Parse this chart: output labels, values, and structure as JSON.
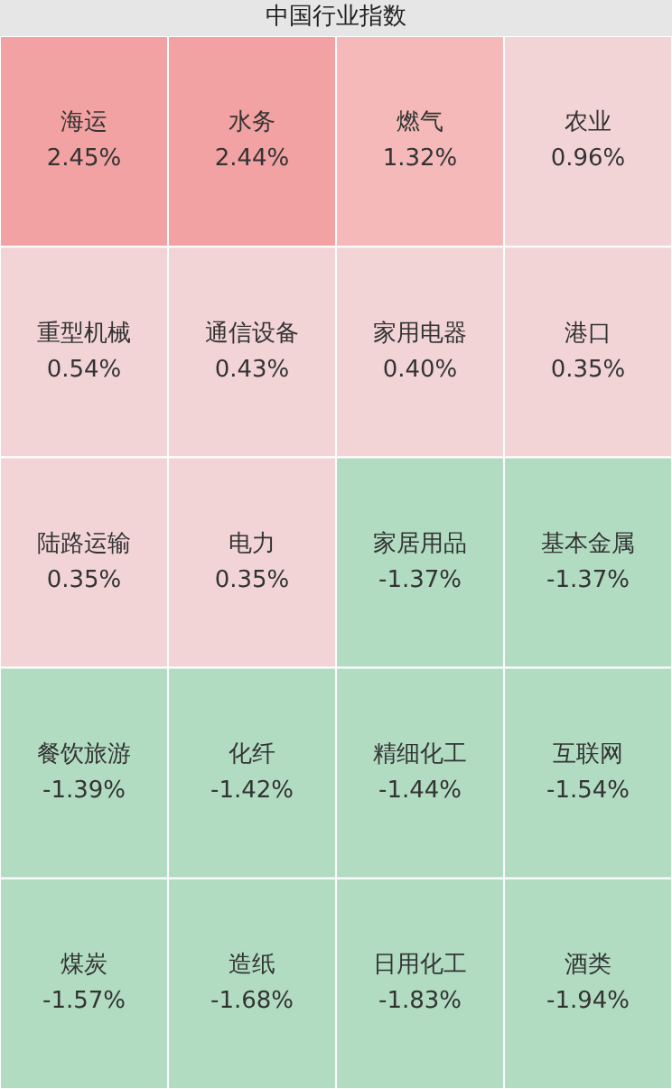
{
  "chart_data": {
    "type": "other",
    "title": "中国行业指数",
    "categories": [
      "海运",
      "水务",
      "燃气",
      "农业",
      "重型机械",
      "通信设备",
      "家用电器",
      "港口",
      "陆路运输",
      "电力",
      "家居用品",
      "基本金属",
      "餐饮旅游",
      "化纤",
      "精细化工",
      "互联网",
      "煤炭",
      "造纸",
      "日用化工",
      "酒类"
    ],
    "values": [
      2.45,
      2.44,
      1.32,
      0.96,
      0.54,
      0.43,
      0.4,
      0.35,
      0.35,
      0.35,
      -1.37,
      -1.37,
      -1.39,
      -1.42,
      -1.44,
      -1.54,
      -1.57,
      -1.68,
      -1.83,
      -1.94
    ],
    "value_labels": [
      "2.45%",
      "2.44%",
      "1.32%",
      "0.96%",
      "0.54%",
      "0.43%",
      "0.40%",
      "0.35%",
      "0.35%",
      "0.35%",
      "-1.37%",
      "-1.37%",
      "-1.39%",
      "-1.42%",
      "-1.44%",
      "-1.54%",
      "-1.57%",
      "-1.68%",
      "-1.83%",
      "-1.94%"
    ]
  }
}
